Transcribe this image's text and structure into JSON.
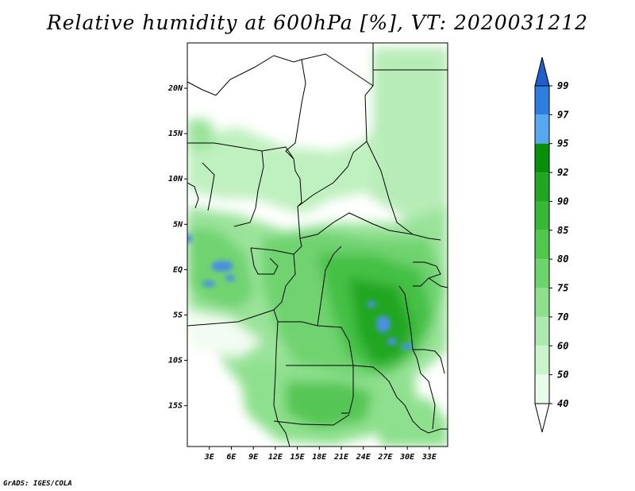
{
  "title": "Relative humidity at 600hPa [%], VT: 2020031212",
  "credit": "GrADS: IGES/COLA",
  "map": {
    "lat_ticks": [
      "20N",
      "15N",
      "10N",
      "5N",
      "EQ",
      "5S",
      "10S",
      "15S"
    ],
    "lon_ticks": [
      "3E",
      "6E",
      "9E",
      "12E",
      "15E",
      "18E",
      "21E",
      "24E",
      "27E",
      "30E",
      "33E"
    ],
    "lat_range": [
      -19.5,
      25
    ],
    "lon_range": [
      0,
      35.5
    ]
  },
  "colorbar": {
    "labels": [
      "99",
      "97",
      "95",
      "92",
      "90",
      "85",
      "80",
      "75",
      "70",
      "60",
      "50",
      "40"
    ],
    "colors": [
      "#1e5fcc",
      "#2c7fe0",
      "#58a8f0",
      "#0a8f0a",
      "#22a622",
      "#38b838",
      "#50c850",
      "#6cd46c",
      "#8ee08e",
      "#aeeaae",
      "#ccf4cc",
      "#e9fbe9"
    ]
  },
  "colors": {
    "background": "#ffffff",
    "low": "#e9fbe9",
    "mid": "#8ee08e",
    "high": "#22a622",
    "saturated": "#4a90e2"
  }
}
